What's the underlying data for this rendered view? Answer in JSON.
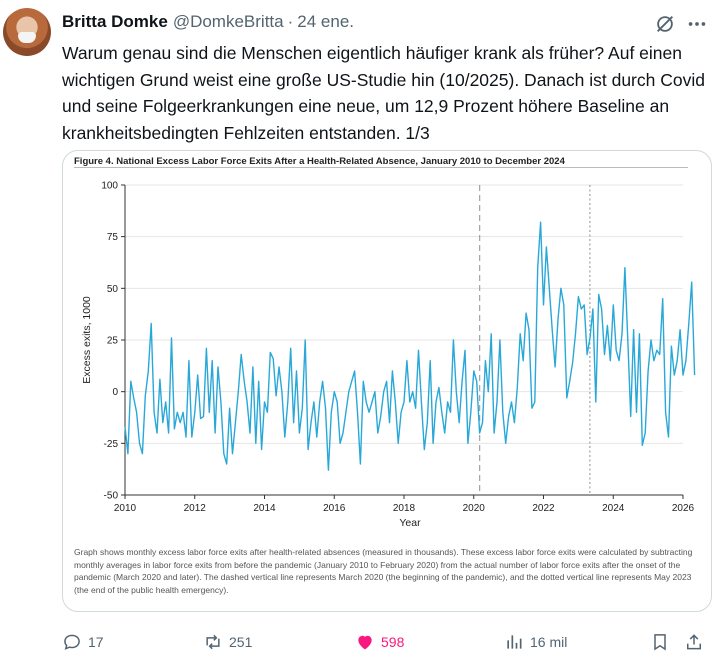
{
  "tweet": {
    "author_name": "Britta Domke",
    "handle": "@DomkeBritta",
    "separator": "·",
    "date": "24 ene.",
    "text": "Warum genau sind die Menschen eigentlich häufiger krank als früher? Auf einen wichtigen Grund weist eine große US-Studie hin (10/2025). Danach ist durch Covid und seine Folgeerkrankungen eine neue, um 12,9 Prozent höhere Baseline an krankheitsbedingten Fehlzeiten entstanden. 1/3"
  },
  "figure": {
    "title": "Figure 4.  National Excess Labor Force Exits After a Health-Related Absence, January 2010 to December 2024",
    "caption": "Graph shows monthly excess labor force exits after health-related absences (measured in thousands). These excess labor force exits were calculated by subtracting monthly averages in labor force exits from before the pandemic (January 2010 to February 2020) from the actual number of labor force exits after the onset of the pandemic (March 2020 and later). The dashed vertical line represents March 2020 (the beginning of the pandemic), and the dotted vertical line represents May 2023 (the end of the public health emergency)."
  },
  "chart_data": {
    "type": "line",
    "title": "",
    "xlabel": "Year",
    "ylabel": "Excess exits, 1000",
    "xlim": [
      2010,
      2026
    ],
    "ylim": [
      -50,
      100
    ],
    "x_ticks": [
      2010,
      2012,
      2014,
      2016,
      2018,
      2020,
      2022,
      2024,
      2026
    ],
    "y_ticks": [
      -50,
      -25,
      0,
      25,
      50,
      75,
      100
    ],
    "grid": true,
    "line_color": "#29a8d8",
    "start": "2010-01",
    "frequency": "monthly",
    "vlines": [
      {
        "x": 2020.17,
        "style": "dashed"
      },
      {
        "x": 2023.33,
        "style": "dotted"
      }
    ],
    "values": [
      -17,
      -30,
      5,
      -3,
      -10,
      -25,
      -30,
      -2,
      10,
      33,
      -10,
      -20,
      6,
      -15,
      -5,
      -20,
      26,
      -18,
      -10,
      -15,
      -10,
      -22,
      15,
      -22,
      -10,
      8,
      -13,
      -12,
      21,
      -10,
      15,
      -20,
      12,
      -5,
      -30,
      -35,
      -8,
      -30,
      -15,
      0,
      18,
      5,
      -5,
      -20,
      12,
      -25,
      5,
      -28,
      -5,
      -10,
      19,
      16,
      -2,
      12,
      0,
      -22,
      -5,
      21,
      -15,
      10,
      -20,
      -8,
      25,
      -28,
      -15,
      -5,
      -22,
      -5,
      5,
      -8,
      -38,
      -10,
      0,
      -5,
      -25,
      -20,
      -10,
      0,
      5,
      10,
      -10,
      -35,
      5,
      -5,
      -10,
      -5,
      0,
      -20,
      -12,
      0,
      5,
      -15,
      10,
      -5,
      -25,
      -10,
      -5,
      15,
      -5,
      0,
      -8,
      20,
      -5,
      -28,
      -15,
      15,
      -25,
      -5,
      2,
      -10,
      -20,
      -5,
      -10,
      25,
      0,
      -15,
      5,
      20,
      -25,
      -10,
      10,
      5,
      -20,
      -15,
      15,
      0,
      28,
      -20,
      -5,
      25,
      -10,
      -25,
      -12,
      -5,
      -15,
      2,
      28,
      15,
      38,
      30,
      -8,
      -5,
      60,
      82,
      42,
      70,
      50,
      30,
      12,
      35,
      50,
      42,
      -3,
      5,
      14,
      28,
      46,
      40,
      42,
      18,
      26,
      40,
      -5,
      47,
      40,
      18,
      32,
      15,
      42,
      20,
      15,
      28,
      60,
      25,
      -12,
      30,
      -10,
      28,
      -26,
      -20,
      10,
      25,
      15,
      20,
      18,
      45,
      -10,
      -22,
      22,
      8,
      15,
      30,
      8,
      15,
      33,
      53,
      8
    ]
  },
  "actions": {
    "replies": "17",
    "reposts": "251",
    "likes": "598",
    "views": "16 mil"
  },
  "colors": {
    "accent": "#1d9bf0",
    "like": "#f91880",
    "muted": "#536471",
    "chart_line": "#29a8d8"
  },
  "icons": [
    "grok-icon",
    "more-icon",
    "reply-icon",
    "repost-icon",
    "like-icon",
    "views-icon",
    "bookmark-icon",
    "share-icon"
  ]
}
